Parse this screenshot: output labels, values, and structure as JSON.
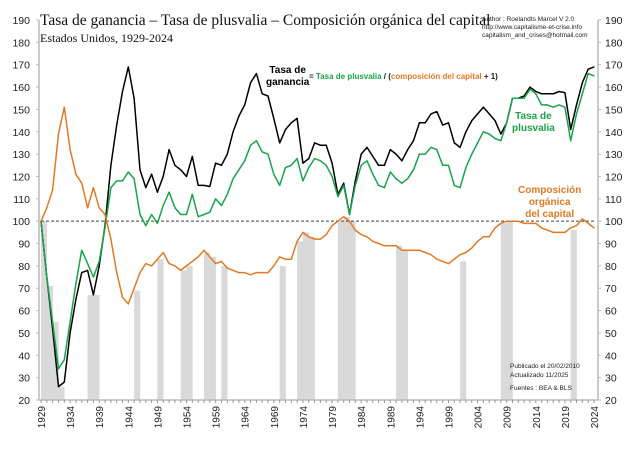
{
  "chart_data": {
    "type": "line",
    "title": "Tasa de ganancia – Tasa de plusvalia – Composición orgánica del capital",
    "subtitle": "Estados Unidos, 1929-2024",
    "author_lines": [
      "Author : Roelandts Marcel  V 2.0",
      "http://www.capitalisme-et-crise.info",
      "capitalism_and_crises@hotmail.com"
    ],
    "equation": {
      "lhs_line1": "Tasa de",
      "lhs_line2": "ganancia",
      "eq": " = ",
      "green": "Tasa de plusvalia",
      "slash": " / (",
      "orange": "composición del capital",
      "tail": " + 1)"
    },
    "series_labels": {
      "plusvalia_line1": "Tasa de",
      "plusvalia_line2": "plusvalia",
      "composicion_line1": "Composición",
      "composicion_line2": "orgánica",
      "composicion_line3": "del capital"
    },
    "notes": [
      "Publicado el 20/02/2010",
      "Actualizado 11/2025",
      "Fuentes : BEA & BLS"
    ],
    "ylim": [
      20,
      190
    ],
    "yticks": [
      20,
      30,
      40,
      50,
      60,
      70,
      80,
      90,
      100,
      110,
      120,
      130,
      140,
      150,
      160,
      170,
      180,
      190
    ],
    "xlim": [
      1929,
      2024
    ],
    "xticks": [
      1929,
      1934,
      1939,
      1944,
      1949,
      1954,
      1959,
      1964,
      1969,
      1974,
      1979,
      1984,
      1989,
      1994,
      1999,
      2004,
      2009,
      2014,
      2019,
      2024
    ],
    "reference_line": 100,
    "x_start": 1929,
    "series": [
      {
        "name": "Tasa de ganancia",
        "color": "#000000",
        "values": [
          100,
          75,
          52,
          26,
          28,
          50,
          65,
          77,
          78,
          67,
          80,
          98,
          125,
          143,
          158,
          169,
          155,
          123,
          115,
          121,
          113,
          120,
          132,
          125,
          123,
          120,
          129,
          116,
          116,
          115.5,
          126,
          125,
          130,
          140,
          147,
          152,
          162,
          166,
          157,
          156,
          146,
          135,
          141,
          144,
          146,
          126,
          128,
          135,
          134,
          134,
          126,
          112,
          117,
          103,
          118,
          130,
          133,
          129,
          125,
          125,
          132,
          130,
          127,
          132,
          136,
          144,
          144,
          148,
          149,
          143,
          144,
          135,
          133,
          140,
          145,
          148,
          151,
          148,
          145,
          139,
          144,
          155,
          155,
          156,
          160,
          158,
          157,
          157,
          157,
          158,
          157.5,
          141,
          152,
          162,
          168,
          169
        ]
      },
      {
        "name": "Tasa de plusvalia",
        "color": "#1aa44a",
        "values": [
          100,
          75,
          55,
          34,
          38,
          55,
          72,
          87,
          81,
          75,
          82,
          97,
          115,
          118,
          118,
          122,
          119,
          103,
          98,
          103,
          99,
          107,
          113,
          106,
          103,
          103,
          112,
          102,
          103,
          104,
          110,
          107,
          112,
          119,
          123,
          127,
          134,
          136,
          131,
          130,
          121,
          116,
          124,
          125,
          128,
          118,
          124,
          128,
          127,
          125,
          120,
          111,
          116,
          103,
          116,
          125,
          127,
          121,
          116,
          115,
          122,
          119,
          117,
          119,
          123,
          130,
          130,
          133,
          132,
          125,
          125,
          116,
          115,
          124,
          130,
          135,
          140,
          139,
          137,
          136,
          144,
          155,
          155,
          155,
          159,
          157,
          152,
          152,
          151,
          152,
          151,
          136,
          148,
          157,
          166,
          165
        ]
      },
      {
        "name": "Composición orgánica del capital",
        "color": "#e07a24",
        "values": [
          100,
          106,
          114,
          139,
          151,
          132,
          121,
          117,
          106,
          115,
          106,
          103,
          92,
          77,
          66,
          63,
          70,
          77,
          81,
          80,
          83,
          86,
          81,
          80,
          78,
          80,
          82,
          84,
          87,
          84,
          81,
          82,
          79,
          78,
          77,
          77,
          76,
          77,
          77,
          77,
          80,
          84,
          83,
          83,
          91,
          95,
          93,
          92,
          92,
          94,
          98,
          100,
          102,
          100,
          96,
          94,
          93,
          91,
          90,
          89,
          89,
          89,
          87,
          87,
          87,
          87,
          86,
          85,
          83,
          82,
          81,
          83,
          85,
          86,
          88,
          91,
          93,
          93,
          97,
          99,
          100,
          100,
          100,
          99,
          99,
          99,
          97,
          96,
          95,
          95,
          95,
          97,
          98,
          101,
          99,
          97
        ]
      }
    ],
    "shaded_periods": [
      {
        "year": 1929,
        "top": 100
      },
      {
        "year": 1930,
        "top": 71
      },
      {
        "year": 1931,
        "top": 55
      },
      {
        "year": 1932,
        "top": 26
      },
      {
        "year": 1937,
        "top": 67
      },
      {
        "year": 1938,
        "top": 67
      },
      {
        "year": 1945,
        "top": 69
      },
      {
        "year": 1949,
        "top": 83
      },
      {
        "year": 1953,
        "top": 78
      },
      {
        "year": 1954,
        "top": 80
      },
      {
        "year": 1957,
        "top": 86
      },
      {
        "year": 1958,
        "top": 84
      },
      {
        "year": 1960,
        "top": 80
      },
      {
        "year": 1970,
        "top": 80
      },
      {
        "year": 1973,
        "top": 91
      },
      {
        "year": 1974,
        "top": 95
      },
      {
        "year": 1975,
        "top": 93
      },
      {
        "year": 1980,
        "top": 100
      },
      {
        "year": 1981,
        "top": 102
      },
      {
        "year": 1982,
        "top": 100
      },
      {
        "year": 1990,
        "top": 89
      },
      {
        "year": 1991,
        "top": 87
      },
      {
        "year": 2001,
        "top": 82
      },
      {
        "year": 2008,
        "top": 99
      },
      {
        "year": 2009,
        "top": 100
      },
      {
        "year": 2020,
        "top": 96
      }
    ],
    "shade_color": "#d9d9d9",
    "grid": false,
    "legend": "inline labels"
  }
}
